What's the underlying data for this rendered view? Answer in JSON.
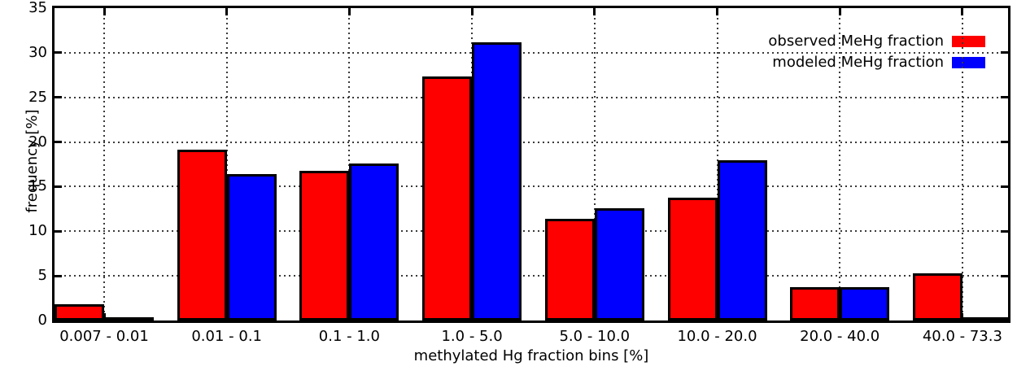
{
  "chart_data": {
    "type": "bar",
    "title": "",
    "xlabel": "methylated Hg fraction bins [%]",
    "ylabel": "frequency [%]",
    "categories": [
      "0.007 - 0.01",
      "0.01 - 0.1",
      "0.1 - 1.0",
      "1.0 - 5.0",
      "5.0 - 10.0",
      "10.0 - 20.0",
      "20.0 - 40.0",
      "40.0 - 73.3"
    ],
    "series": [
      {
        "name": "observed MeHg fraction",
        "color": "#ff0000",
        "values": [
          1.8,
          19.1,
          16.8,
          27.3,
          11.4,
          13.8,
          3.7,
          5.3
        ]
      },
      {
        "name": "modeled MeHg fraction",
        "color": "#0000ff",
        "values": [
          0,
          16.4,
          17.6,
          31.2,
          12.6,
          18.0,
          3.7,
          0
        ]
      }
    ],
    "ylim": [
      0,
      35
    ],
    "yticks": [
      0,
      5,
      10,
      15,
      20,
      25,
      30,
      35
    ],
    "ytick_step": 5,
    "grid": "dotted",
    "legend_position": "top-right",
    "bar_border_color": "#000000",
    "background_color": "#ffffff"
  }
}
